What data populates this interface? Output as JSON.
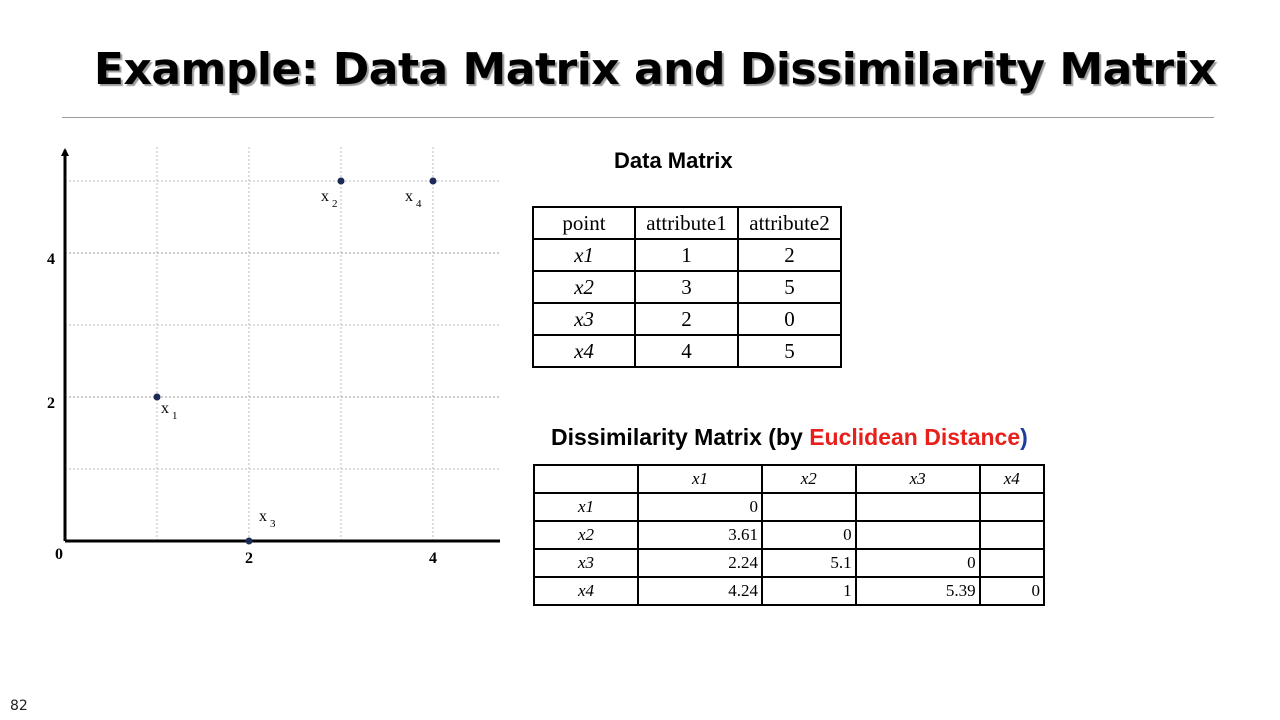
{
  "title": "Example: Data Matrix and Dissimilarity Matrix",
  "page_number": "82",
  "data_matrix": {
    "heading": "Data Matrix",
    "headers": [
      "point",
      "attribute1",
      "attribute2"
    ],
    "rows": [
      {
        "point": "x1",
        "a1": "1",
        "a2": "2"
      },
      {
        "point": "x2",
        "a1": "3",
        "a2": "5"
      },
      {
        "point": "x3",
        "a1": "2",
        "a2": "0"
      },
      {
        "point": "x4",
        "a1": "4",
        "a2": "5"
      }
    ]
  },
  "dissimilarity_matrix": {
    "heading_prefix": "Dissimilarity Matrix (by ",
    "heading_highlight": "Euclidean Distance",
    "heading_suffix": ")",
    "headers": [
      "",
      "x1",
      "x2",
      "x3",
      "x4"
    ],
    "rows": [
      {
        "point": "x1",
        "values": [
          "0",
          "",
          "",
          ""
        ]
      },
      {
        "point": "x2",
        "values": [
          "3.61",
          "0",
          "",
          ""
        ]
      },
      {
        "point": "x3",
        "values": [
          "2.24",
          "5.1",
          "0",
          ""
        ]
      },
      {
        "point": "x4",
        "values": [
          "4.24",
          "1",
          "5.39",
          "0"
        ]
      }
    ]
  },
  "colors": {
    "highlight_red": "#e8201c",
    "paren_blue": "#1f3c9e",
    "point_color": "#1c2a55"
  },
  "chart_data": {
    "type": "scatter",
    "origin_label": "0",
    "x_ticks": [
      {
        "value": 2,
        "label": "2"
      },
      {
        "value": 4,
        "label": "4"
      }
    ],
    "y_ticks": [
      {
        "value": 2,
        "label": "2"
      },
      {
        "value": 4,
        "label": "4"
      }
    ],
    "xlim": [
      0,
      4.5
    ],
    "ylim": [
      0,
      5.5
    ],
    "grid": true,
    "points": [
      {
        "name": "x",
        "sub": "1",
        "x": 1,
        "y": 2
      },
      {
        "name": "x",
        "sub": "2",
        "x": 3,
        "y": 5
      },
      {
        "name": "x",
        "sub": "3",
        "x": 2,
        "y": 0
      },
      {
        "name": "x",
        "sub": "4",
        "x": 4,
        "y": 5
      }
    ]
  }
}
